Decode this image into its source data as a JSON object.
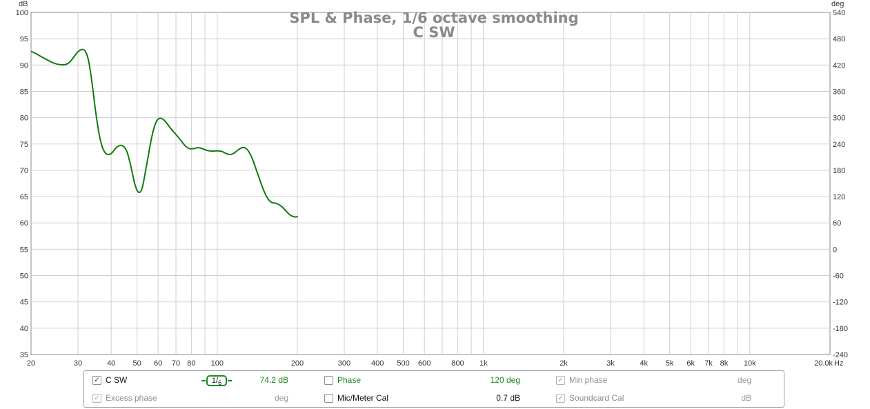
{
  "chart_data": {
    "type": "line",
    "title": "SPL & Phase, 1/6 octave smoothing",
    "subtitle": "C SW",
    "left_unit": "dB",
    "right_unit": "deg",
    "x_unit": "Hz",
    "xscale": "log",
    "xlim": [
      20,
      20000
    ],
    "ylim": [
      35,
      100
    ],
    "y2lim": [
      -240,
      540
    ],
    "grid": true,
    "yticks": [
      "100",
      "95",
      "90",
      "85",
      "80",
      "75",
      "70",
      "65",
      "60",
      "55",
      "50",
      "45",
      "40",
      "35"
    ],
    "y2ticks": [
      "540",
      "480",
      "420",
      "360",
      "300",
      "240",
      "180",
      "120",
      "60",
      "0",
      "-60",
      "-120",
      "-180",
      "-240"
    ],
    "xticks": [
      {
        "v": 20,
        "label": "20"
      },
      {
        "v": 30,
        "label": "30"
      },
      {
        "v": 40,
        "label": "40"
      },
      {
        "v": 50,
        "label": "50"
      },
      {
        "v": 60,
        "label": "60"
      },
      {
        "v": 70,
        "label": "70"
      },
      {
        "v": 80,
        "label": "80"
      },
      {
        "v": 100,
        "label": "100"
      },
      {
        "v": 200,
        "label": "200"
      },
      {
        "v": 300,
        "label": "300"
      },
      {
        "v": 400,
        "label": "400"
      },
      {
        "v": 500,
        "label": "500"
      },
      {
        "v": 600,
        "label": "600"
      },
      {
        "v": 800,
        "label": "800"
      },
      {
        "v": 1000,
        "label": "1k"
      },
      {
        "v": 2000,
        "label": "2k"
      },
      {
        "v": 3000,
        "label": "3k"
      },
      {
        "v": 4000,
        "label": "4k"
      },
      {
        "v": 5000,
        "label": "5k"
      },
      {
        "v": 6000,
        "label": "6k"
      },
      {
        "v": 7000,
        "label": "7k"
      },
      {
        "v": 8000,
        "label": "8k"
      },
      {
        "v": 10000,
        "label": "10k"
      },
      {
        "v": 20000,
        "label": "20.0k"
      }
    ],
    "x_minor": [
      90,
      700,
      900,
      9000
    ],
    "series": [
      {
        "name": "C SW",
        "color": "#0e7a0e",
        "points": [
          [
            20,
            92.6
          ],
          [
            21,
            92.1
          ],
          [
            22,
            91.5
          ],
          [
            23,
            91.0
          ],
          [
            24,
            90.5
          ],
          [
            25,
            90.2
          ],
          [
            26,
            90.05
          ],
          [
            27,
            90.1
          ],
          [
            28,
            90.6
          ],
          [
            29,
            91.6
          ],
          [
            30,
            92.5
          ],
          [
            31,
            92.95
          ],
          [
            32,
            92.6
          ],
          [
            33,
            90.5
          ],
          [
            34,
            86.0
          ],
          [
            35,
            81.0
          ],
          [
            36,
            77.0
          ],
          [
            37,
            74.5
          ],
          [
            38,
            73.3
          ],
          [
            39,
            73.0
          ],
          [
            40,
            73.2
          ],
          [
            41,
            73.8
          ],
          [
            42,
            74.4
          ],
          [
            43,
            74.7
          ],
          [
            44,
            74.7
          ],
          [
            45,
            74.3
          ],
          [
            46,
            73.3
          ],
          [
            47,
            71.6
          ],
          [
            48,
            69.5
          ],
          [
            49,
            67.5
          ],
          [
            50,
            66.2
          ],
          [
            51,
            65.8
          ],
          [
            52,
            66.3
          ],
          [
            53,
            68.0
          ],
          [
            55,
            72.5
          ],
          [
            57,
            76.7
          ],
          [
            59,
            79.2
          ],
          [
            61,
            79.9
          ],
          [
            63,
            79.6
          ],
          [
            65,
            78.8
          ],
          [
            67,
            77.9
          ],
          [
            70,
            76.8
          ],
          [
            73,
            75.7
          ],
          [
            76,
            74.6
          ],
          [
            79,
            74.1
          ],
          [
            82,
            74.15
          ],
          [
            85,
            74.3
          ],
          [
            88,
            74.1
          ],
          [
            92,
            73.75
          ],
          [
            96,
            73.65
          ],
          [
            100,
            73.7
          ],
          [
            104,
            73.6
          ],
          [
            108,
            73.2
          ],
          [
            112,
            73.0
          ],
          [
            116,
            73.3
          ],
          [
            120,
            73.9
          ],
          [
            124,
            74.3
          ],
          [
            128,
            74.2
          ],
          [
            132,
            73.4
          ],
          [
            136,
            72.0
          ],
          [
            140,
            70.2
          ],
          [
            145,
            68.0
          ],
          [
            150,
            66.0
          ],
          [
            155,
            64.6
          ],
          [
            160,
            63.9
          ],
          [
            167,
            63.7
          ],
          [
            174,
            63.2
          ],
          [
            181,
            62.3
          ],
          [
            188,
            61.5
          ],
          [
            195,
            61.15
          ],
          [
            201,
            61.2
          ]
        ]
      }
    ]
  },
  "legend": {
    "trace": {
      "label": "C SW",
      "checked": "✓",
      "smoothing_num": "1",
      "smoothing_den": "6",
      "value": "74.2 dB"
    },
    "phase": {
      "label": "Phase",
      "checked": "",
      "value": "120 deg"
    },
    "min_phase": {
      "label": "Min phase",
      "checked": "✓",
      "value": "deg"
    },
    "excess_phase": {
      "label": "Excess phase",
      "checked": "✓",
      "value": "deg"
    },
    "mic_cal": {
      "label": "Mic/Meter Cal",
      "checked": "",
      "value": "0.7 dB"
    },
    "soundcard_cal": {
      "label": "Soundcard Cal",
      "checked": "✓",
      "value": "dB"
    }
  }
}
